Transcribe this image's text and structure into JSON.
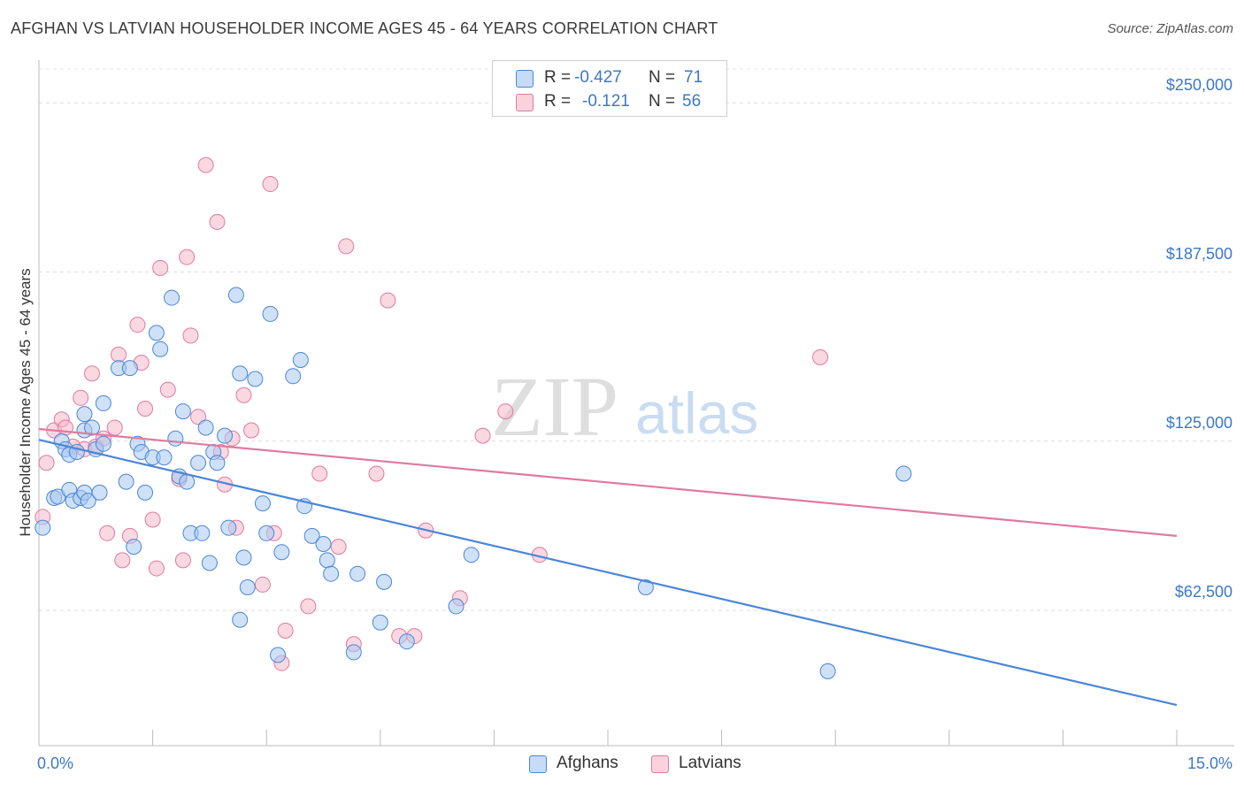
{
  "header": {
    "title": "AFGHAN VS LATVIAN HOUSEHOLDER INCOME AGES 45 - 64 YEARS CORRELATION CHART",
    "source": "Source: ZipAtlas.com"
  },
  "watermark": {
    "part1": "ZIP",
    "part2": "atlas"
  },
  "legend": {
    "rows": [
      {
        "r_label": "R = ",
        "r_value": "-0.427",
        "n_label": "N = ",
        "n_value": "71",
        "color": "#a8c8f0"
      },
      {
        "r_label": "R = ",
        "r_value": "-0.121",
        "n_label": "N = ",
        "n_value": "56",
        "color": "#f5b8cb"
      }
    ]
  },
  "chart_data": {
    "type": "scatter",
    "title": "AFGHAN VS LATVIAN HOUSEHOLDER INCOME AGES 45 - 64 YEARS CORRELATION CHART",
    "xlabel": "",
    "ylabel": "Householder Income Ages 45 - 64 years",
    "xlim": [
      0,
      15
    ],
    "ylim": [
      12500,
      262500
    ],
    "x_tick_labels": [
      "0.0%",
      "15.0%"
    ],
    "y_ticks": [
      {
        "value": 62500,
        "label": "$62,500"
      },
      {
        "value": 125000,
        "label": "$125,000"
      },
      {
        "value": 187500,
        "label": "$187,500"
      },
      {
        "value": 250000,
        "label": "$250,000"
      }
    ],
    "grid": true,
    "legend_position": "bottom-center",
    "series": [
      {
        "name": "Afghans",
        "color": "#4a86d8",
        "fill": "#a8c8f0",
        "trend": {
          "x": [
            0,
            15
          ],
          "y": [
            125500,
            27500
          ]
        },
        "points": [
          [
            0.05,
            93000
          ],
          [
            0.2,
            104000
          ],
          [
            0.25,
            104500
          ],
          [
            0.3,
            125000
          ],
          [
            0.35,
            122000
          ],
          [
            0.4,
            120000
          ],
          [
            0.4,
            107000
          ],
          [
            0.45,
            103000
          ],
          [
            0.5,
            121000
          ],
          [
            0.55,
            104000
          ],
          [
            0.6,
            129000
          ],
          [
            0.6,
            135000
          ],
          [
            0.6,
            106000
          ],
          [
            0.65,
            103000
          ],
          [
            0.7,
            130000
          ],
          [
            0.75,
            122000
          ],
          [
            0.8,
            106000
          ],
          [
            0.85,
            124000
          ],
          [
            0.85,
            139000
          ],
          [
            1.05,
            152000
          ],
          [
            1.15,
            110000
          ],
          [
            1.2,
            152000
          ],
          [
            1.25,
            86000
          ],
          [
            1.3,
            124000
          ],
          [
            1.35,
            121000
          ],
          [
            1.4,
            106000
          ],
          [
            1.5,
            119000
          ],
          [
            1.55,
            165000
          ],
          [
            1.6,
            159000
          ],
          [
            1.65,
            119000
          ],
          [
            1.75,
            178000
          ],
          [
            1.8,
            126000
          ],
          [
            1.85,
            112000
          ],
          [
            1.9,
            136000
          ],
          [
            1.95,
            110000
          ],
          [
            2.0,
            91000
          ],
          [
            2.1,
            117000
          ],
          [
            2.15,
            91000
          ],
          [
            2.2,
            130000
          ],
          [
            2.25,
            80000
          ],
          [
            2.3,
            121000
          ],
          [
            2.35,
            117000
          ],
          [
            2.45,
            127000
          ],
          [
            2.5,
            93000
          ],
          [
            2.6,
            179000
          ],
          [
            2.65,
            59000
          ],
          [
            2.65,
            150000
          ],
          [
            2.7,
            82000
          ],
          [
            2.75,
            71000
          ],
          [
            2.85,
            148000
          ],
          [
            2.95,
            102000
          ],
          [
            3.0,
            91000
          ],
          [
            3.05,
            172000
          ],
          [
            3.15,
            46000
          ],
          [
            3.2,
            84000
          ],
          [
            3.35,
            149000
          ],
          [
            3.45,
            155000
          ],
          [
            3.5,
            101000
          ],
          [
            3.6,
            90000
          ],
          [
            3.75,
            87000
          ],
          [
            3.8,
            81000
          ],
          [
            3.85,
            76000
          ],
          [
            4.15,
            47000
          ],
          [
            4.2,
            76000
          ],
          [
            4.5,
            58000
          ],
          [
            4.55,
            73000
          ],
          [
            4.85,
            51000
          ],
          [
            5.5,
            64000
          ],
          [
            5.7,
            83000
          ],
          [
            8.0,
            71000
          ],
          [
            10.4,
            40000
          ],
          [
            11.4,
            113000
          ]
        ]
      },
      {
        "name": "Latvians",
        "color": "#e07aa0",
        "fill": "#f5b8cb",
        "trend": {
          "x": [
            0,
            15
          ],
          "y": [
            129500,
            90000
          ]
        },
        "points": [
          [
            0.05,
            97000
          ],
          [
            0.1,
            117000
          ],
          [
            0.2,
            129000
          ],
          [
            0.3,
            133000
          ],
          [
            0.35,
            130000
          ],
          [
            0.45,
            123000
          ],
          [
            0.55,
            141000
          ],
          [
            0.6,
            122000
          ],
          [
            0.7,
            150000
          ],
          [
            0.75,
            123000
          ],
          [
            0.85,
            126000
          ],
          [
            0.9,
            91000
          ],
          [
            1.0,
            130000
          ],
          [
            1.05,
            157000
          ],
          [
            1.1,
            81000
          ],
          [
            1.2,
            90000
          ],
          [
            1.3,
            168000
          ],
          [
            1.35,
            154000
          ],
          [
            1.4,
            137000
          ],
          [
            1.5,
            96000
          ],
          [
            1.55,
            78000
          ],
          [
            1.6,
            189000
          ],
          [
            1.7,
            144000
          ],
          [
            1.85,
            111000
          ],
          [
            1.9,
            81000
          ],
          [
            1.95,
            193000
          ],
          [
            2.0,
            164000
          ],
          [
            2.1,
            134000
          ],
          [
            2.2,
            227000
          ],
          [
            2.35,
            206000
          ],
          [
            2.4,
            121000
          ],
          [
            2.45,
            109000
          ],
          [
            2.55,
            126000
          ],
          [
            2.6,
            93000
          ],
          [
            2.7,
            142000
          ],
          [
            2.8,
            129000
          ],
          [
            2.95,
            72000
          ],
          [
            3.05,
            220000
          ],
          [
            3.1,
            91000
          ],
          [
            3.2,
            43000
          ],
          [
            3.25,
            55000
          ],
          [
            3.55,
            64000
          ],
          [
            3.7,
            113000
          ],
          [
            3.95,
            86000
          ],
          [
            4.05,
            197000
          ],
          [
            4.15,
            50000
          ],
          [
            4.45,
            113000
          ],
          [
            4.6,
            177000
          ],
          [
            4.95,
            53000
          ],
          [
            5.1,
            92000
          ],
          [
            5.55,
            67000
          ],
          [
            5.85,
            127000
          ],
          [
            6.15,
            136000
          ],
          [
            6.6,
            83000
          ],
          [
            10.3,
            156000
          ],
          [
            4.75,
            53000
          ]
        ]
      }
    ]
  },
  "bottom_legend": {
    "items": [
      {
        "label": "Afghans",
        "color": "#a8c8f0",
        "border": "#4a86d8"
      },
      {
        "label": "Latvians",
        "color": "#f5b8cb",
        "border": "#e07aa0"
      }
    ]
  }
}
